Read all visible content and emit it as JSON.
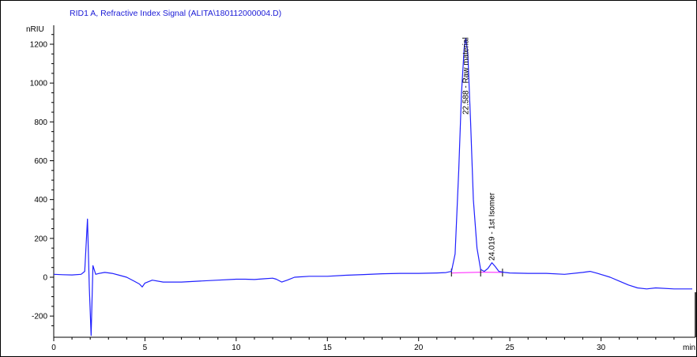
{
  "chart_data": {
    "type": "line",
    "title": "RID1 A, Refractive Index Signal (ALITA\\180112000004.D)",
    "ylabel": "nRIU",
    "xlabel": "min",
    "xlim": [
      0,
      35
    ],
    "ylim": [
      -300,
      1300
    ],
    "x_ticks": [
      0,
      5,
      10,
      15,
      20,
      25,
      30
    ],
    "y_ticks": [
      -200,
      0,
      200,
      400,
      600,
      800,
      1000,
      1200
    ],
    "colors": {
      "trace": "#2020ff",
      "baseline": "#ff44ff",
      "axis": "#000000",
      "title": "#1a1ad6"
    },
    "series": [
      {
        "x": [
          0,
          0.5,
          1.0,
          1.5,
          1.7,
          1.85,
          1.95,
          2.05,
          2.15,
          2.3,
          2.5,
          2.8,
          3.2,
          3.6,
          4.0,
          4.4,
          4.7,
          4.85,
          5.0,
          5.4,
          6.0,
          7.0,
          8.0,
          9.0,
          10.0,
          10.5,
          11.0,
          11.5,
          12.0,
          12.2,
          12.5,
          12.8,
          13.2,
          14.0,
          15.0,
          16.0,
          17.0,
          18.0,
          19.0,
          20.0,
          21.0,
          21.5,
          21.8,
          22.0,
          22.2,
          22.35,
          22.5,
          22.588,
          22.7,
          22.85,
          23.0,
          23.2,
          23.4,
          23.6,
          23.8,
          24.019,
          24.2,
          24.4,
          24.7,
          25.0,
          26.0,
          27.0,
          28.0,
          29.0,
          29.4,
          29.8,
          30.5,
          31.0,
          31.5,
          32.0,
          32.5,
          33.0,
          34.0,
          35.0
        ],
        "y": [
          15,
          13,
          12,
          15,
          30,
          300,
          -50,
          -300,
          60,
          15,
          20,
          25,
          20,
          10,
          0,
          -20,
          -35,
          -50,
          -30,
          -15,
          -25,
          -25,
          -20,
          -15,
          -10,
          -10,
          -12,
          -8,
          -5,
          -10,
          -25,
          -15,
          0,
          5,
          5,
          10,
          14,
          18,
          20,
          20,
          22,
          24,
          30,
          120,
          550,
          950,
          1180,
          1230,
          1150,
          800,
          400,
          150,
          40,
          30,
          45,
          75,
          55,
          30,
          25,
          22,
          20,
          20,
          15,
          25,
          30,
          20,
          0,
          -20,
          -40,
          -55,
          -60,
          -55,
          -60,
          -60
        ]
      }
    ],
    "baseline_segments": [
      {
        "x": [
          21.8,
          23.4
        ],
        "y": [
          22,
          26
        ]
      },
      {
        "x": [
          23.4,
          24.6
        ],
        "y": [
          26,
          25
        ]
      }
    ],
    "peak_marks": [
      21.8,
      23.4,
      24.6
    ],
    "annotations": [
      {
        "x": 22.588,
        "y": 1230,
        "text": "22.588 - Raw material"
      },
      {
        "x": 24.019,
        "y": 75,
        "text": "24.019 - 1st Isomer"
      }
    ]
  }
}
